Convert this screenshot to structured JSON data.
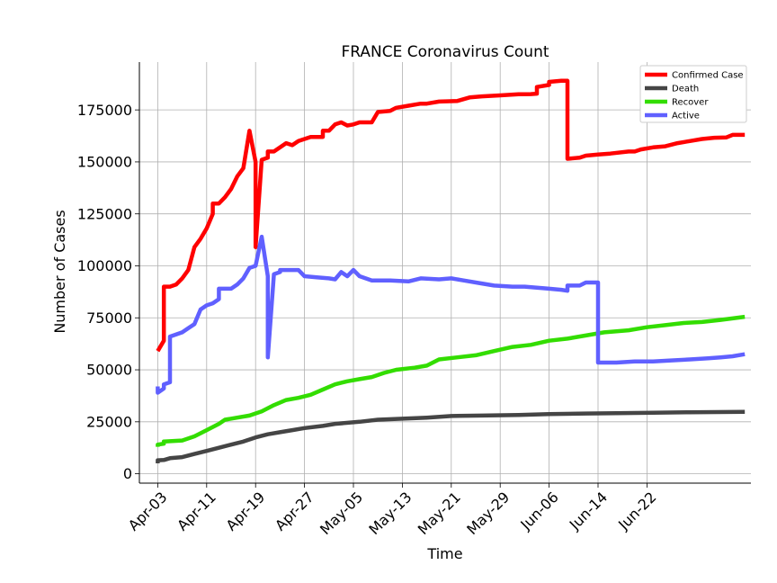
{
  "chart_data": {
    "type": "line",
    "title": "FRANCE Coronavirus Count",
    "xlabel": "Time",
    "ylabel": "Number of Cases",
    "x_tick_labels": [
      "Apr-03",
      "Apr-11",
      "Apr-19",
      "Apr-27",
      "May-05",
      "May-13",
      "May-21",
      "May-29",
      "Jun-06",
      "Jun-14",
      "Jun-22"
    ],
    "x_start": "2020-03-31",
    "x_end": "2020-06-28",
    "y_ticks": [
      0,
      25000,
      50000,
      75000,
      100000,
      125000,
      150000,
      175000
    ],
    "y_tick_labels": [
      "0",
      "25000",
      "50000",
      "75000",
      "100000",
      "125000",
      "150000",
      "175000"
    ],
    "ylim": [
      -4500,
      198000
    ],
    "grid": true,
    "legend_position": "top-right",
    "series": [
      {
        "name": "Confirmed Case",
        "color": "#ff0000",
        "points": [
          [
            "2020-04-03",
            59000
          ],
          [
            "2020-04-04",
            64000
          ],
          [
            "2020-04-04",
            90000
          ],
          [
            "2020-04-05",
            90000
          ],
          [
            "2020-04-06",
            91000
          ],
          [
            "2020-04-07",
            94000
          ],
          [
            "2020-04-08",
            98000
          ],
          [
            "2020-04-09",
            109000
          ],
          [
            "2020-04-10",
            113000
          ],
          [
            "2020-04-11",
            118000
          ],
          [
            "2020-04-12",
            125000
          ],
          [
            "2020-04-12",
            130000
          ],
          [
            "2020-04-13",
            130000
          ],
          [
            "2020-04-14",
            133000
          ],
          [
            "2020-04-15",
            137000
          ],
          [
            "2020-04-16",
            143000
          ],
          [
            "2020-04-17",
            147000
          ],
          [
            "2020-04-18",
            165000
          ],
          [
            "2020-04-19",
            150000
          ],
          [
            "2020-04-19",
            109000
          ],
          [
            "2020-04-20",
            151000
          ],
          [
            "2020-04-21",
            152000
          ],
          [
            "2020-04-21",
            155000
          ],
          [
            "2020-04-22",
            155000
          ],
          [
            "2020-04-23",
            157000
          ],
          [
            "2020-04-24",
            159000
          ],
          [
            "2020-04-25",
            158000
          ],
          [
            "2020-04-26",
            160000
          ],
          [
            "2020-04-27",
            161000
          ],
          [
            "2020-04-28",
            162000
          ],
          [
            "2020-04-30",
            162000
          ],
          [
            "2020-04-30",
            165000
          ],
          [
            "2020-05-01",
            165000
          ],
          [
            "2020-05-02",
            168000
          ],
          [
            "2020-05-03",
            169000
          ],
          [
            "2020-05-04",
            167500
          ],
          [
            "2020-05-05",
            168000
          ],
          [
            "2020-05-06",
            169000
          ],
          [
            "2020-05-08",
            169000
          ],
          [
            "2020-05-09",
            174000
          ],
          [
            "2020-05-11",
            174500
          ],
          [
            "2020-05-12",
            176000
          ],
          [
            "2020-05-14",
            177000
          ],
          [
            "2020-05-16",
            178000
          ],
          [
            "2020-05-17",
            178000
          ],
          [
            "2020-05-19",
            179000
          ],
          [
            "2020-05-22",
            179300
          ],
          [
            "2020-05-24",
            181000
          ],
          [
            "2020-05-26",
            181500
          ],
          [
            "2020-05-29",
            182000
          ],
          [
            "2020-06-01",
            182500
          ],
          [
            "2020-06-03",
            182600
          ],
          [
            "2020-06-04",
            182800
          ],
          [
            "2020-06-04",
            186000
          ],
          [
            "2020-06-06",
            187000
          ],
          [
            "2020-06-06",
            188500
          ],
          [
            "2020-06-08",
            189000
          ],
          [
            "2020-06-09",
            189000
          ],
          [
            "2020-06-09",
            151500
          ],
          [
            "2020-06-11",
            152000
          ],
          [
            "2020-06-12",
            153000
          ],
          [
            "2020-06-14",
            153500
          ],
          [
            "2020-06-16",
            154000
          ],
          [
            "2020-06-19",
            155000
          ],
          [
            "2020-06-20",
            155000
          ],
          [
            "2020-06-21",
            156000
          ],
          [
            "2020-06-23",
            157000
          ],
          [
            "2020-06-25",
            157500
          ],
          [
            "2020-06-27",
            159000
          ],
          [
            "2020-06-29",
            160000
          ],
          [
            "2020-07-01",
            161000
          ],
          [
            "2020-07-03",
            161600
          ],
          [
            "2020-07-05",
            161800
          ],
          [
            "2020-07-06",
            163000
          ],
          [
            "2020-07-08",
            163000
          ]
        ]
      },
      {
        "name": "Death",
        "color": "#454545",
        "points": [
          [
            "2020-04-03",
            5000
          ],
          [
            "2020-04-03",
            6500
          ],
          [
            "2020-04-04",
            6600
          ],
          [
            "2020-04-05",
            7500
          ],
          [
            "2020-04-07",
            8000
          ],
          [
            "2020-04-09",
            9500
          ],
          [
            "2020-04-11",
            11000
          ],
          [
            "2020-04-13",
            12500
          ],
          [
            "2020-04-15",
            14000
          ],
          [
            "2020-04-17",
            15500
          ],
          [
            "2020-04-19",
            17500
          ],
          [
            "2020-04-21",
            19000
          ],
          [
            "2020-04-23",
            20000
          ],
          [
            "2020-04-25",
            21000
          ],
          [
            "2020-04-27",
            22000
          ],
          [
            "2020-04-30",
            23000
          ],
          [
            "2020-05-02",
            24000
          ],
          [
            "2020-05-06",
            25000
          ],
          [
            "2020-05-09",
            26000
          ],
          [
            "2020-05-13",
            26500
          ],
          [
            "2020-05-17",
            27000
          ],
          [
            "2020-05-21",
            27800
          ],
          [
            "2020-05-26",
            28000
          ],
          [
            "2020-06-01",
            28300
          ],
          [
            "2020-06-06",
            28700
          ],
          [
            "2020-06-12",
            29000
          ],
          [
            "2020-06-17",
            29100
          ],
          [
            "2020-06-23",
            29400
          ],
          [
            "2020-06-29",
            29600
          ],
          [
            "2020-07-08",
            29800
          ]
        ]
      },
      {
        "name": "Recover",
        "color": "#33dd00",
        "points": [
          [
            "2020-04-03",
            13000
          ],
          [
            "2020-04-03",
            14000
          ],
          [
            "2020-04-04",
            14500
          ],
          [
            "2020-04-04",
            15500
          ],
          [
            "2020-04-07",
            16000
          ],
          [
            "2020-04-09",
            18000
          ],
          [
            "2020-04-11",
            21000
          ],
          [
            "2020-04-13",
            24000
          ],
          [
            "2020-04-14",
            26000
          ],
          [
            "2020-04-16",
            27000
          ],
          [
            "2020-04-18",
            28000
          ],
          [
            "2020-04-20",
            30000
          ],
          [
            "2020-04-22",
            33000
          ],
          [
            "2020-04-24",
            35500
          ],
          [
            "2020-04-26",
            36500
          ],
          [
            "2020-04-28",
            38000
          ],
          [
            "2020-04-30",
            40500
          ],
          [
            "2020-05-02",
            43000
          ],
          [
            "2020-05-04",
            44500
          ],
          [
            "2020-05-06",
            45500
          ],
          [
            "2020-05-08",
            46500
          ],
          [
            "2020-05-10",
            48500
          ],
          [
            "2020-05-12",
            50000
          ],
          [
            "2020-05-15",
            51000
          ],
          [
            "2020-05-17",
            52000
          ],
          [
            "2020-05-19",
            55000
          ],
          [
            "2020-05-22",
            56000
          ],
          [
            "2020-05-25",
            57000
          ],
          [
            "2020-05-28",
            59000
          ],
          [
            "2020-05-31",
            61000
          ],
          [
            "2020-06-03",
            62000
          ],
          [
            "2020-06-06",
            64000
          ],
          [
            "2020-06-09",
            65000
          ],
          [
            "2020-06-12",
            66500
          ],
          [
            "2020-06-15",
            68000
          ],
          [
            "2020-06-19",
            69000
          ],
          [
            "2020-06-22",
            70500
          ],
          [
            "2020-06-25",
            71500
          ],
          [
            "2020-06-28",
            72500
          ],
          [
            "2020-07-01",
            73000
          ],
          [
            "2020-07-04",
            74000
          ],
          [
            "2020-07-08",
            75500
          ]
        ]
      },
      {
        "name": "Active",
        "color": "#6060ff",
        "points": [
          [
            "2020-04-03",
            42000
          ],
          [
            "2020-04-03",
            39000
          ],
          [
            "2020-04-04",
            41000
          ],
          [
            "2020-04-04",
            43000
          ],
          [
            "2020-04-05",
            44000
          ],
          [
            "2020-04-05",
            66000
          ],
          [
            "2020-04-06",
            67000
          ],
          [
            "2020-04-07",
            68000
          ],
          [
            "2020-04-08",
            70000
          ],
          [
            "2020-04-09",
            72000
          ],
          [
            "2020-04-10",
            79000
          ],
          [
            "2020-04-11",
            81000
          ],
          [
            "2020-04-12",
            82000
          ],
          [
            "2020-04-13",
            84000
          ],
          [
            "2020-04-13",
            89000
          ],
          [
            "2020-04-15",
            89000
          ],
          [
            "2020-04-16",
            91000
          ],
          [
            "2020-04-17",
            94000
          ],
          [
            "2020-04-18",
            99000
          ],
          [
            "2020-04-19",
            100000
          ],
          [
            "2020-04-20",
            114000
          ],
          [
            "2020-04-21",
            95000
          ],
          [
            "2020-04-21",
            56000
          ],
          [
            "2020-04-22",
            96000
          ],
          [
            "2020-04-23",
            97000
          ],
          [
            "2020-04-23",
            98000
          ],
          [
            "2020-04-26",
            98000
          ],
          [
            "2020-04-27",
            95000
          ],
          [
            "2020-04-29",
            94500
          ],
          [
            "2020-05-01",
            94000
          ],
          [
            "2020-05-02",
            93500
          ],
          [
            "2020-05-03",
            97000
          ],
          [
            "2020-05-04",
            95000
          ],
          [
            "2020-05-05",
            98000
          ],
          [
            "2020-05-06",
            95000
          ],
          [
            "2020-05-07",
            94000
          ],
          [
            "2020-05-08",
            93000
          ],
          [
            "2020-05-11",
            93000
          ],
          [
            "2020-05-14",
            92500
          ],
          [
            "2020-05-16",
            94000
          ],
          [
            "2020-05-19",
            93500
          ],
          [
            "2020-05-21",
            94000
          ],
          [
            "2020-05-23",
            93000
          ],
          [
            "2020-05-26",
            91500
          ],
          [
            "2020-05-28",
            90500
          ],
          [
            "2020-05-31",
            90000
          ],
          [
            "2020-06-02",
            90000
          ],
          [
            "2020-06-04",
            89500
          ],
          [
            "2020-06-06",
            89000
          ],
          [
            "2020-06-08",
            88500
          ],
          [
            "2020-06-09",
            88000
          ],
          [
            "2020-06-09",
            90500
          ],
          [
            "2020-06-11",
            90500
          ],
          [
            "2020-06-12",
            92000
          ],
          [
            "2020-06-14",
            92000
          ],
          [
            "2020-06-14",
            53500
          ],
          [
            "2020-06-17",
            53500
          ],
          [
            "2020-06-20",
            54000
          ],
          [
            "2020-06-23",
            54000
          ],
          [
            "2020-06-26",
            54500
          ],
          [
            "2020-06-29",
            55000
          ],
          [
            "2020-07-02",
            55500
          ],
          [
            "2020-07-04",
            56000
          ],
          [
            "2020-07-06",
            56500
          ],
          [
            "2020-07-08",
            57500
          ]
        ]
      }
    ]
  }
}
